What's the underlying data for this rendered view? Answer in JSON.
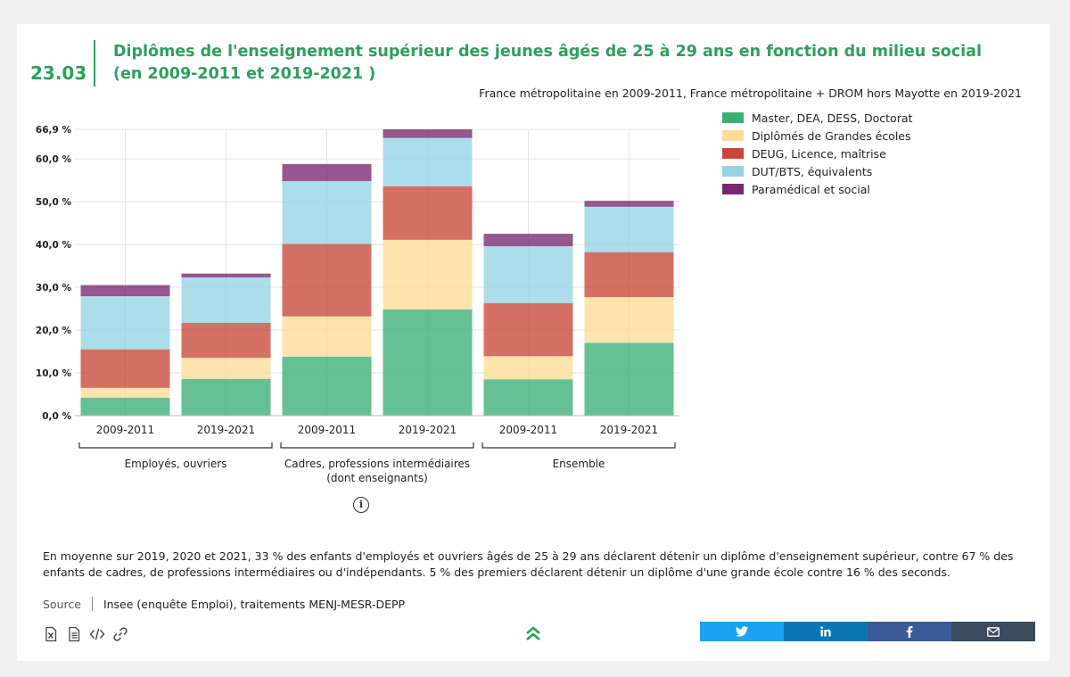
{
  "header": {
    "number": "23.03",
    "title": "Diplômes de l'enseignement supérieur des jeunes âgés de 25 à 29 ans en fonction du milieu social (en 2009-2011 et 2019-2021 )",
    "subtitle": "France métropolitaine en 2009-2011, France métropolitaine + DROM hors Mayotte en 2019-2021"
  },
  "chart_data": {
    "type": "bar",
    "stacked": true,
    "y_tick_labels": [
      "0,0 %",
      "10,0 %",
      "20,0 %",
      "30,0 %",
      "40,0 %",
      "50,0 %",
      "60,0 %",
      "66,9 %"
    ],
    "y_ticks": [
      0,
      10,
      20,
      30,
      40,
      50,
      60,
      66.9
    ],
    "ylim": [
      0,
      66.9
    ],
    "grid": true,
    "legend_position": "right",
    "categories": [
      "2009-2011",
      "2019-2021",
      "2009-2011",
      "2019-2021",
      "2009-2011",
      "2019-2021"
    ],
    "groups": [
      {
        "label": "Employés, ouvriers",
        "indices": [
          0,
          1
        ]
      },
      {
        "label": "Cadres, professions intermédiaires (dont enseignants)",
        "indices": [
          2,
          3
        ]
      },
      {
        "label": "Ensemble",
        "indices": [
          4,
          5
        ]
      }
    ],
    "series": [
      {
        "name": "Master, DEA, DESS, Doctorat",
        "color": "#3aaf75",
        "values": [
          4.2,
          8.6,
          13.8,
          24.8,
          8.5,
          17.0
        ]
      },
      {
        "name": "Diplômés de Grandes écoles",
        "color": "#fddc96",
        "values": [
          2.3,
          4.9,
          9.4,
          16.3,
          5.4,
          10.7
        ]
      },
      {
        "name": "DEUG, Licence, maîtrise",
        "color": "#c84738",
        "values": [
          9.0,
          8.2,
          16.9,
          12.5,
          12.4,
          10.5
        ]
      },
      {
        "name": "DUT/BTS, équivalents",
        "color": "#95d3e4",
        "values": [
          12.4,
          10.6,
          14.7,
          11.3,
          13.3,
          10.6
        ]
      },
      {
        "name": "Paramédical et social",
        "color": "#79286f",
        "values": [
          2.6,
          0.9,
          4.0,
          2.0,
          2.9,
          1.4
        ]
      }
    ]
  },
  "note": "En moyenne sur 2019, 2020 et 2021, 33 % des enfants d'employés et ouvriers âgés de 25 à 29 ans déclarent détenir un diplôme d'enseignement supérieur, contre 67 % des enfants de cadres, de professions intermédiaires ou d'indépendants. 5 % des premiers déclarent détenir un diplôme d'une grande école contre 16 % des seconds.",
  "source": {
    "label": "Source",
    "text": "Insee (enquête Emploi), traitements MENJ-MESR-DEPP"
  },
  "toolbar": {
    "icons": [
      "excel-icon",
      "document-icon",
      "code-icon",
      "link-icon"
    ]
  },
  "share": [
    {
      "name": "twitter",
      "color": "#1da1f2"
    },
    {
      "name": "linkedin",
      "color": "#0a77b5"
    },
    {
      "name": "facebook",
      "color": "#3a5a98"
    },
    {
      "name": "email",
      "color": "#3a4b5e"
    }
  ],
  "info_glyph": "i"
}
